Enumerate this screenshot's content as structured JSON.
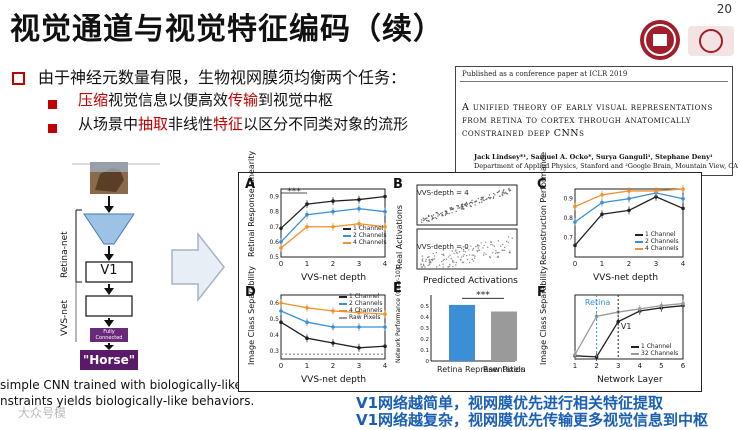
{
  "slide": {
    "title": "视觉通道与视觉特征编码（续）",
    "page_number": "20"
  },
  "bullets": {
    "main": "由于神经元数量有限，生物视网膜须均衡两个任务：",
    "sub1": {
      "p1": "压缩",
      "p2": "视觉信息以便高效",
      "p3": "传输",
      "p4": "到视觉中枢"
    },
    "sub2": {
      "p1": "从场景中",
      "p2": "抽取",
      "p3": "非线性",
      "p4": "特征",
      "p5": "以区分不同类对象的流形"
    }
  },
  "paper": {
    "note": "Published as a conference paper at ICLR 2019",
    "title": "A unified theory of early visual representations from retina to cortex through anatomically constrained deep CNNs",
    "authors": "Jack Lindsey*¹, Samuel A. Ocko*, Surya Ganguli¹, Stephane Deny¹",
    "dept": "Department of Applied Physics, Stanford and ²Google Brain, Mountain View, CA"
  },
  "network": {
    "retina_label": "Retina-net",
    "vvs_label": "VVS-net",
    "v1_label": "V1",
    "fc_label": "Fully Connected",
    "output_label": "\"Horse\""
  },
  "caption": {
    "line1": "simple CNN trained with biologically-like",
    "line2": "nstraints yields biologically-like behaviors."
  },
  "conclusions": {
    "line1": "V1网络越简单，视网膜优先进行相关特征提取",
    "line2": "V1网络越复杂，视网膜优先传输更多视觉信息到中枢"
  },
  "watermark": "大众号模",
  "colors": {
    "c1": "#222222",
    "c2": "#3b8fd6",
    "c3": "#f0922e",
    "raw": "#9a9a9a",
    "accent": "#c00000",
    "blue_text": "#1a5fb4"
  },
  "chart_data": [
    {
      "panel": "A",
      "type": "line",
      "xlabel": "VVS-net depth",
      "ylabel": "Retinal Response Linearity",
      "x": [
        0,
        1,
        2,
        3,
        4
      ],
      "ylim": [
        0.5,
        0.95
      ],
      "yticks": [
        "0.5",
        "0.6",
        "0.7",
        "0.8",
        "0.9"
      ],
      "annotation": "***",
      "series": [
        {
          "name": "1 Channel",
          "values": [
            0.69,
            0.85,
            0.87,
            0.88,
            0.9
          ]
        },
        {
          "name": "2 Channels",
          "values": [
            0.6,
            0.78,
            0.8,
            0.82,
            0.8
          ]
        },
        {
          "name": "4 Channels",
          "values": [
            0.56,
            0.7,
            0.7,
            0.72,
            0.7
          ]
        }
      ]
    },
    {
      "panel": "B",
      "type": "scatter",
      "xlabel": "Predicted Activations",
      "ylabel": "Real Activations",
      "annotations": [
        "VVS-depth = 4",
        "VVS-depth = 0"
      ]
    },
    {
      "panel": "C",
      "type": "line",
      "ylabel": "Reconstruction Performance",
      "xlabel": "VVS-net depth",
      "x": [
        0,
        1,
        2,
        3,
        4
      ],
      "ylim": [
        0.6,
        0.95
      ],
      "yticks": [
        "0.7",
        "0.8",
        "0.9"
      ],
      "series": [
        {
          "name": "1 Channel",
          "values": [
            0.66,
            0.82,
            0.84,
            0.91,
            0.85
          ]
        },
        {
          "name": "2 Channels",
          "values": [
            0.78,
            0.88,
            0.9,
            0.93,
            0.9
          ]
        },
        {
          "name": "4 Channels",
          "values": [
            0.86,
            0.92,
            0.94,
            0.94,
            0.95
          ]
        }
      ]
    },
    {
      "panel": "D",
      "type": "line",
      "xlabel": "VVS-net depth",
      "ylabel": "Image Class Separability",
      "x": [
        0,
        1,
        2,
        3,
        4
      ],
      "ylim": [
        0.25,
        0.65
      ],
      "yticks": [
        "0.3",
        "0.4",
        "0.5",
        "0.6"
      ],
      "series": [
        {
          "name": "1 Channel",
          "values": [
            0.48,
            0.38,
            0.35,
            0.32,
            0.33
          ]
        },
        {
          "name": "2 Channels",
          "values": [
            0.55,
            0.48,
            0.45,
            0.45,
            0.45
          ]
        },
        {
          "name": "4 Channels",
          "values": [
            0.6,
            0.57,
            0.55,
            0.54,
            0.53
          ]
        },
        {
          "name": "Raw Pixels",
          "values": [
            0.28,
            0.28,
            0.28,
            0.28,
            0.28
          ]
        }
      ]
    },
    {
      "panel": "E",
      "type": "bar",
      "ylabel": "Network Performance (Cifar-10)",
      "categories": [
        "Retina Representation",
        "Raw Pixels"
      ],
      "values": [
        0.51,
        0.45
      ],
      "ylim": [
        0,
        0.6
      ],
      "yticks": [
        "0",
        "0.1",
        "0.2",
        "0.3",
        "0.4",
        "0.5"
      ],
      "annotation": "***"
    },
    {
      "panel": "F",
      "type": "line",
      "xlabel": "Network Layer",
      "ylabel": "Image Class Separability",
      "x": [
        1,
        2,
        3,
        4,
        5,
        6
      ],
      "ylim": [
        0.3,
        0.9
      ],
      "annotations": [
        "Retina",
        "V1"
      ],
      "series": [
        {
          "name": "1 Channel",
          "values": [
            0.33,
            0.32,
            0.65,
            0.75,
            0.78,
            0.8
          ]
        },
        {
          "name": "32 Channels",
          "values": [
            0.34,
            0.7,
            0.74,
            0.77,
            0.8,
            0.82
          ]
        }
      ]
    }
  ]
}
